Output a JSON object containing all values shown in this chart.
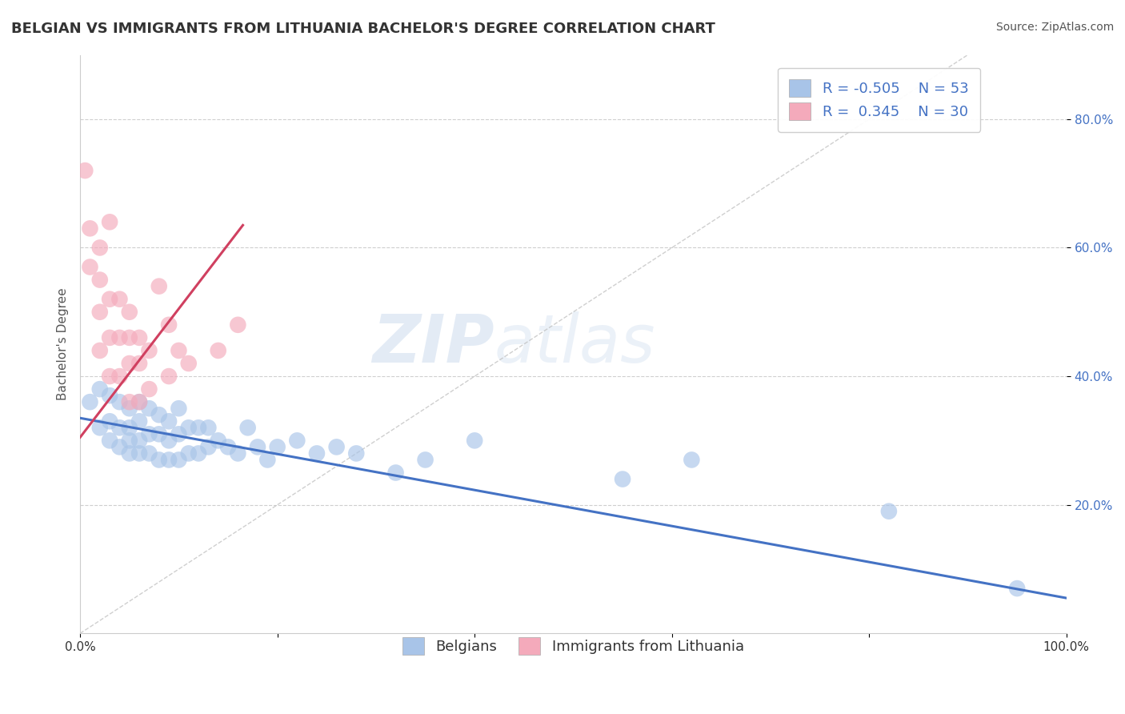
{
  "title": "BELGIAN VS IMMIGRANTS FROM LITHUANIA BACHELOR'S DEGREE CORRELATION CHART",
  "source": "Source: ZipAtlas.com",
  "ylabel": "Bachelor's Degree",
  "xlabel": "",
  "watermark_part1": "ZIP",
  "watermark_part2": "atlas",
  "xlim": [
    0.0,
    1.0
  ],
  "ylim": [
    0.0,
    0.9
  ],
  "xticks": [
    0.0,
    0.2,
    0.4,
    0.6,
    0.8,
    1.0
  ],
  "xticklabels": [
    "0.0%",
    "",
    "",
    "",
    "",
    "100.0%"
  ],
  "yticks": [
    0.2,
    0.4,
    0.6,
    0.8
  ],
  "yticklabels": [
    "20.0%",
    "40.0%",
    "60.0%",
    "80.0%"
  ],
  "blue_color": "#A8C4E8",
  "pink_color": "#F4AABB",
  "blue_line_color": "#4472C4",
  "pink_line_color": "#D04060",
  "grid_color": "#BBBBBB",
  "background_color": "#FFFFFF",
  "blue_scatter_x": [
    0.01,
    0.02,
    0.02,
    0.03,
    0.03,
    0.03,
    0.04,
    0.04,
    0.04,
    0.05,
    0.05,
    0.05,
    0.05,
    0.06,
    0.06,
    0.06,
    0.06,
    0.07,
    0.07,
    0.07,
    0.08,
    0.08,
    0.08,
    0.09,
    0.09,
    0.09,
    0.1,
    0.1,
    0.1,
    0.11,
    0.11,
    0.12,
    0.12,
    0.13,
    0.13,
    0.14,
    0.15,
    0.16,
    0.17,
    0.18,
    0.19,
    0.2,
    0.22,
    0.24,
    0.26,
    0.28,
    0.32,
    0.35,
    0.4,
    0.55,
    0.62,
    0.82,
    0.95
  ],
  "blue_scatter_y": [
    0.36,
    0.38,
    0.32,
    0.37,
    0.33,
    0.3,
    0.36,
    0.32,
    0.29,
    0.35,
    0.32,
    0.3,
    0.28,
    0.36,
    0.33,
    0.3,
    0.28,
    0.35,
    0.31,
    0.28,
    0.34,
    0.31,
    0.27,
    0.33,
    0.3,
    0.27,
    0.35,
    0.31,
    0.27,
    0.32,
    0.28,
    0.32,
    0.28,
    0.32,
    0.29,
    0.3,
    0.29,
    0.28,
    0.32,
    0.29,
    0.27,
    0.29,
    0.3,
    0.28,
    0.29,
    0.28,
    0.25,
    0.27,
    0.3,
    0.24,
    0.27,
    0.19,
    0.07
  ],
  "pink_scatter_x": [
    0.005,
    0.01,
    0.01,
    0.02,
    0.02,
    0.02,
    0.02,
    0.03,
    0.03,
    0.03,
    0.03,
    0.04,
    0.04,
    0.04,
    0.05,
    0.05,
    0.05,
    0.05,
    0.06,
    0.06,
    0.06,
    0.07,
    0.07,
    0.08,
    0.09,
    0.09,
    0.1,
    0.11,
    0.14,
    0.16
  ],
  "pink_scatter_y": [
    0.72,
    0.63,
    0.57,
    0.6,
    0.55,
    0.5,
    0.44,
    0.64,
    0.52,
    0.46,
    0.4,
    0.52,
    0.46,
    0.4,
    0.5,
    0.46,
    0.42,
    0.36,
    0.46,
    0.42,
    0.36,
    0.44,
    0.38,
    0.54,
    0.48,
    0.4,
    0.44,
    0.42,
    0.44,
    0.48
  ],
  "blue_trend_x": [
    0.0,
    1.0
  ],
  "blue_trend_y": [
    0.335,
    0.055
  ],
  "pink_trend_x": [
    0.0,
    0.165
  ],
  "pink_trend_y": [
    0.305,
    0.635
  ],
  "diag_line_x": [
    0.0,
    0.9
  ],
  "diag_line_y": [
    0.0,
    0.9
  ],
  "title_fontsize": 13,
  "axis_fontsize": 11,
  "tick_fontsize": 11,
  "source_fontsize": 10,
  "legend_fontsize": 13,
  "watermark_fontsize": 60
}
